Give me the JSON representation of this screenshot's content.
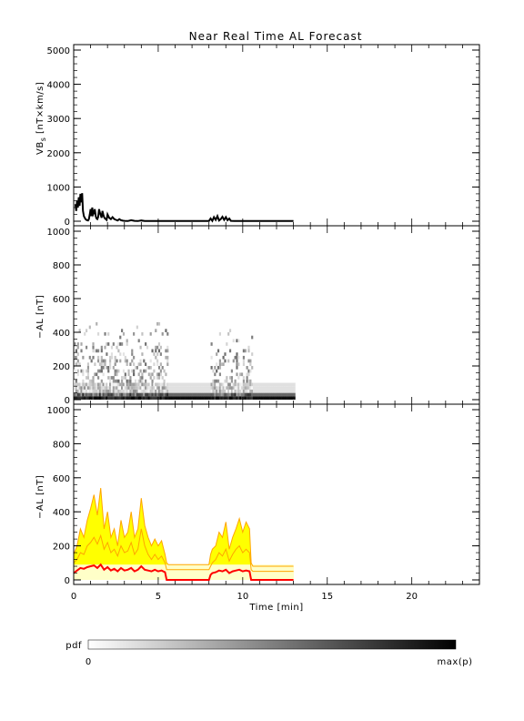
{
  "colors": {
    "axis": "#000000",
    "vbs_line": "#000000",
    "yellow_fill": "#ffff00",
    "orange_line": "#ffa500",
    "red_line": "#ff0000",
    "pdf_min": "#ffffff",
    "pdf_max": "#000000"
  },
  "chart_data": [
    {
      "type": "line",
      "title": "Near Real Time AL Forecast",
      "ylabel": "VB",
      "ylabel_sub": "s",
      "ylabel_tail": " [nT×km/s]",
      "xlim": [
        0,
        24
      ],
      "ylim": [
        0,
        5000
      ],
      "yticks": [
        0,
        1000,
        2000,
        3000,
        4000,
        5000
      ],
      "ytick_labels": [
        "0",
        "1000",
        "2000",
        "3000",
        "4000",
        "5000"
      ],
      "series": [
        {
          "x": [
            0.1,
            0.15,
            0.2,
            0.25,
            0.3,
            0.35,
            0.4,
            0.45,
            0.5,
            0.55,
            0.6,
            0.65,
            0.7,
            0.75,
            0.8,
            0.85,
            0.9,
            0.95,
            1.0,
            1.05,
            1.1,
            1.15,
            1.2,
            1.25,
            1.3,
            1.35,
            1.4,
            1.45,
            1.5,
            1.55,
            1.6,
            1.65,
            1.7,
            1.75,
            1.8,
            1.85,
            1.9,
            1.95,
            2.0,
            2.05,
            2.1,
            2.2,
            2.3,
            2.4,
            2.5,
            2.6,
            2.7,
            2.8,
            2.9,
            3.0,
            3.2,
            3.4,
            3.6,
            3.8,
            4.0,
            4.2,
            4.5,
            5.0,
            5.5,
            6.0,
            6.5,
            7.0,
            7.5,
            8.0,
            8.1,
            8.2,
            8.3,
            8.4,
            8.5,
            8.6,
            8.7,
            8.8,
            8.9,
            9.0,
            9.1,
            9.2,
            9.3,
            9.5,
            10.0,
            11.0,
            12.0,
            13.0
          ],
          "y": [
            500,
            300,
            600,
            400,
            700,
            450,
            800,
            550,
            820,
            300,
            150,
            100,
            60,
            40,
            30,
            20,
            60,
            200,
            350,
            150,
            400,
            200,
            250,
            350,
            150,
            80,
            60,
            120,
            350,
            250,
            180,
            100,
            300,
            200,
            120,
            80,
            60,
            40,
            200,
            150,
            100,
            60,
            120,
            60,
            40,
            20,
            60,
            30,
            15,
            10,
            5,
            30,
            10,
            5,
            20,
            5,
            5,
            5,
            5,
            5,
            5,
            5,
            5,
            5,
            80,
            10,
            120,
            40,
            150,
            20,
            60,
            130,
            40,
            120,
            30,
            80,
            10,
            5,
            5,
            5,
            5,
            5
          ]
        }
      ]
    },
    {
      "type": "heatmap",
      "ylabel": "−AL [nT]",
      "xlim": [
        0,
        24
      ],
      "ylim": [
        0,
        1000
      ],
      "yticks": [
        0,
        200,
        400,
        600,
        800,
        1000
      ],
      "ytick_labels": [
        "0",
        "200",
        "400",
        "600",
        "800",
        "1000"
      ],
      "pdf_extent_x": [
        0,
        13
      ],
      "pdf_extent_y": [
        0,
        100
      ],
      "pdf_active_intervals": [
        [
          0,
          5.5
        ],
        [
          8.0,
          10.5
        ]
      ]
    },
    {
      "type": "area",
      "ylabel": "−AL [nT]",
      "xlabel": "Time [min]",
      "xlim": [
        0,
        24
      ],
      "ylim": [
        0,
        1000
      ],
      "xticks": [
        0,
        5,
        10,
        15,
        20
      ],
      "xtick_labels": [
        "0",
        "5",
        "10",
        "15",
        "20"
      ],
      "yticks": [
        0,
        200,
        400,
        600,
        800,
        1000
      ],
      "ytick_labels": [
        "0",
        "200",
        "400",
        "600",
        "800",
        "1000"
      ],
      "x": [
        0.0,
        0.2,
        0.4,
        0.6,
        0.8,
        1.0,
        1.2,
        1.4,
        1.6,
        1.8,
        2.0,
        2.2,
        2.4,
        2.6,
        2.8,
        3.0,
        3.2,
        3.4,
        3.6,
        3.8,
        4.0,
        4.2,
        4.4,
        4.6,
        4.8,
        5.0,
        5.2,
        5.4,
        5.5,
        5.6,
        6.0,
        7.0,
        8.0,
        8.1,
        8.2,
        8.4,
        8.6,
        8.8,
        9.0,
        9.2,
        9.4,
        9.6,
        9.8,
        10.0,
        10.2,
        10.4,
        10.5,
        10.6,
        11.0,
        12.0,
        13.0
      ],
      "series": [
        {
          "name": "upper",
          "values": [
            150,
            200,
            300,
            250,
            350,
            420,
            500,
            380,
            540,
            300,
            400,
            250,
            300,
            200,
            350,
            250,
            280,
            400,
            250,
            300,
            480,
            320,
            250,
            200,
            240,
            200,
            230,
            150,
            100,
            90,
            90,
            90,
            90,
            150,
            180,
            200,
            280,
            250,
            340,
            180,
            250,
            300,
            360,
            280,
            340,
            300,
            100,
            80,
            80,
            80,
            80
          ]
        },
        {
          "name": "lower",
          "values": [
            100,
            120,
            160,
            150,
            200,
            220,
            250,
            210,
            260,
            180,
            220,
            160,
            180,
            140,
            200,
            160,
            170,
            220,
            150,
            180,
            300,
            200,
            150,
            120,
            150,
            120,
            140,
            100,
            60,
            60,
            60,
            60,
            60,
            80,
            100,
            120,
            160,
            140,
            180,
            110,
            150,
            180,
            200,
            160,
            180,
            160,
            60,
            50,
            50,
            50,
            50
          ]
        },
        {
          "name": "median",
          "values": [
            40,
            55,
            70,
            65,
            75,
            80,
            85,
            70,
            90,
            60,
            75,
            55,
            65,
            50,
            70,
            55,
            60,
            70,
            50,
            60,
            80,
            60,
            55,
            50,
            60,
            50,
            55,
            45,
            0,
            0,
            0,
            0,
            0,
            30,
            40,
            45,
            55,
            50,
            60,
            40,
            50,
            55,
            60,
            50,
            55,
            50,
            0,
            0,
            0,
            0,
            0
          ]
        }
      ]
    }
  ],
  "colorbar": {
    "label": "pdf",
    "min_label": "0",
    "max_label": "max(p)"
  }
}
